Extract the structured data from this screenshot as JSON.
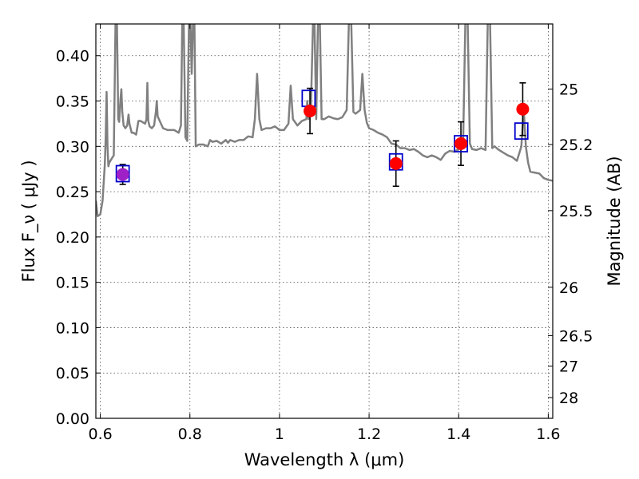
{
  "chart_data": {
    "type": "scatter",
    "xlabel": "Wavelength  λ (μm)",
    "ylabel": "Flux  F_ν  ( μJy )",
    "ylabel_right": "Magnitude (AB)",
    "xlim": [
      0.59,
      1.61
    ],
    "ylim": [
      0.0,
      0.435
    ],
    "x_ticks": [
      0.6,
      0.8,
      1.0,
      1.2,
      1.4,
      1.6
    ],
    "x_tick_labels": [
      "0.6",
      "0.8",
      "1",
      "1.2",
      "1.4",
      "1.6"
    ],
    "y_ticks": [
      0.0,
      0.05,
      0.1,
      0.15,
      0.2,
      0.25,
      0.3,
      0.35,
      0.4
    ],
    "y_tick_labels": [
      "0.00",
      "0.05",
      "0.10",
      "0.15",
      "0.20",
      "0.25",
      "0.30",
      "0.35",
      "0.40"
    ],
    "right_axis_ticks": [
      {
        "mag": 25,
        "label": "25"
      },
      {
        "mag": 25.2,
        "label": "25.2"
      },
      {
        "mag": 25.5,
        "label": "25.5"
      },
      {
        "mag": 26,
        "label": "26"
      },
      {
        "mag": 26.5,
        "label": "26.5"
      },
      {
        "mag": 27,
        "label": "27"
      },
      {
        "mag": 28,
        "label": "28"
      }
    ],
    "grid": true,
    "series": [
      {
        "kind": "model-spectrum",
        "color": "#808080",
        "points": [
          [
            0.59,
            0.24
          ],
          [
            0.594,
            0.223
          ],
          [
            0.6,
            0.225
          ],
          [
            0.605,
            0.24
          ],
          [
            0.61,
            0.28
          ],
          [
            0.612,
            0.31
          ],
          [
            0.614,
            0.36
          ],
          [
            0.616,
            0.3
          ],
          [
            0.618,
            0.278
          ],
          [
            0.62,
            0.282
          ],
          [
            0.626,
            0.287
          ],
          [
            0.63,
            0.29
          ],
          [
            0.634,
            0.44
          ],
          [
            0.637,
            0.44
          ],
          [
            0.64,
            0.33
          ],
          [
            0.642,
            0.327
          ],
          [
            0.645,
            0.352
          ],
          [
            0.647,
            0.363
          ],
          [
            0.649,
            0.338
          ],
          [
            0.652,
            0.323
          ],
          [
            0.656,
            0.32
          ],
          [
            0.66,
            0.323
          ],
          [
            0.663,
            0.335
          ],
          [
            0.665,
            0.325
          ],
          [
            0.67,
            0.315
          ],
          [
            0.674,
            0.315
          ],
          [
            0.68,
            0.313
          ],
          [
            0.685,
            0.328
          ],
          [
            0.69,
            0.328
          ],
          [
            0.7,
            0.325
          ],
          [
            0.703,
            0.33
          ],
          [
            0.705,
            0.37
          ],
          [
            0.707,
            0.328
          ],
          [
            0.71,
            0.322
          ],
          [
            0.715,
            0.32
          ],
          [
            0.72,
            0.323
          ],
          [
            0.724,
            0.338
          ],
          [
            0.726,
            0.35
          ],
          [
            0.728,
            0.333
          ],
          [
            0.74,
            0.32
          ],
          [
            0.75,
            0.318
          ],
          [
            0.765,
            0.318
          ],
          [
            0.775,
            0.315
          ],
          [
            0.78,
            0.323
          ],
          [
            0.783,
            0.44
          ],
          [
            0.786,
            0.44
          ],
          [
            0.79,
            0.31
          ],
          [
            0.794,
            0.306
          ],
          [
            0.798,
            0.44
          ],
          [
            0.801,
            0.44
          ],
          [
            0.804,
            0.38
          ],
          [
            0.807,
            0.44
          ],
          [
            0.81,
            0.44
          ],
          [
            0.813,
            0.3
          ],
          [
            0.82,
            0.302
          ],
          [
            0.83,
            0.302
          ],
          [
            0.84,
            0.3
          ],
          [
            0.845,
            0.307
          ],
          [
            0.85,
            0.305
          ],
          [
            0.86,
            0.306
          ],
          [
            0.87,
            0.303
          ],
          [
            0.88,
            0.307
          ],
          [
            0.885,
            0.304
          ],
          [
            0.89,
            0.307
          ],
          [
            0.9,
            0.305
          ],
          [
            0.91,
            0.307
          ],
          [
            0.92,
            0.307
          ],
          [
            0.93,
            0.311
          ],
          [
            0.94,
            0.31
          ],
          [
            0.945,
            0.33
          ],
          [
            0.95,
            0.38
          ],
          [
            0.955,
            0.33
          ],
          [
            0.96,
            0.318
          ],
          [
            0.97,
            0.32
          ],
          [
            0.98,
            0.32
          ],
          [
            0.99,
            0.322
          ],
          [
            1.0,
            0.318
          ],
          [
            1.01,
            0.318
          ],
          [
            1.02,
            0.325
          ],
          [
            1.025,
            0.367
          ],
          [
            1.03,
            0.33
          ],
          [
            1.04,
            0.323
          ],
          [
            1.05,
            0.328
          ],
          [
            1.06,
            0.33
          ],
          [
            1.062,
            0.35
          ],
          [
            1.065,
            0.33
          ],
          [
            1.07,
            0.34
          ],
          [
            1.075,
            0.44
          ],
          [
            1.078,
            0.44
          ],
          [
            1.082,
            0.33
          ],
          [
            1.086,
            0.44
          ],
          [
            1.09,
            0.44
          ],
          [
            1.094,
            0.33
          ],
          [
            1.1,
            0.33
          ],
          [
            1.11,
            0.333
          ],
          [
            1.12,
            0.331
          ],
          [
            1.13,
            0.33
          ],
          [
            1.14,
            0.332
          ],
          [
            1.15,
            0.34
          ],
          [
            1.155,
            0.44
          ],
          [
            1.16,
            0.44
          ],
          [
            1.165,
            0.338
          ],
          [
            1.17,
            0.336
          ],
          [
            1.18,
            0.34
          ],
          [
            1.185,
            0.38
          ],
          [
            1.19,
            0.34
          ],
          [
            1.195,
            0.326
          ],
          [
            1.2,
            0.32
          ],
          [
            1.21,
            0.318
          ],
          [
            1.22,
            0.315
          ],
          [
            1.23,
            0.313
          ],
          [
            1.24,
            0.31
          ],
          [
            1.25,
            0.303
          ],
          [
            1.26,
            0.302
          ],
          [
            1.27,
            0.298
          ],
          [
            1.28,
            0.298
          ],
          [
            1.29,
            0.296
          ],
          [
            1.3,
            0.297
          ],
          [
            1.31,
            0.294
          ],
          [
            1.32,
            0.29
          ],
          [
            1.33,
            0.288
          ],
          [
            1.34,
            0.29
          ],
          [
            1.35,
            0.288
          ],
          [
            1.36,
            0.285
          ],
          [
            1.37,
            0.292
          ],
          [
            1.38,
            0.295
          ],
          [
            1.39,
            0.294
          ],
          [
            1.4,
            0.297
          ],
          [
            1.41,
            0.305
          ],
          [
            1.415,
            0.44
          ],
          [
            1.42,
            0.44
          ],
          [
            1.425,
            0.303
          ],
          [
            1.43,
            0.297
          ],
          [
            1.44,
            0.296
          ],
          [
            1.45,
            0.298
          ],
          [
            1.46,
            0.296
          ],
          [
            1.465,
            0.44
          ],
          [
            1.47,
            0.44
          ],
          [
            1.475,
            0.298
          ],
          [
            1.48,
            0.3
          ],
          [
            1.49,
            0.296
          ],
          [
            1.5,
            0.293
          ],
          [
            1.51,
            0.29
          ],
          [
            1.52,
            0.288
          ],
          [
            1.53,
            0.284
          ],
          [
            1.54,
            0.3
          ],
          [
            1.545,
            0.343
          ],
          [
            1.55,
            0.3
          ],
          [
            1.555,
            0.282
          ],
          [
            1.56,
            0.272
          ],
          [
            1.57,
            0.271
          ],
          [
            1.58,
            0.27
          ],
          [
            1.59,
            0.265
          ],
          [
            1.6,
            0.263
          ],
          [
            1.61,
            0.262
          ]
        ]
      },
      {
        "kind": "model-photometry",
        "marker": "square",
        "color": "#0000cc",
        "points": [
          {
            "x": 0.65,
            "y": 0.269
          },
          {
            "x": 1.065,
            "y": 0.352
          },
          {
            "x": 1.26,
            "y": 0.282
          },
          {
            "x": 1.405,
            "y": 0.302
          },
          {
            "x": 1.54,
            "y": 0.316
          }
        ]
      },
      {
        "kind": "observed-photometry",
        "marker": "circle",
        "color": "#ff0000",
        "first_point_color": "#a020c8",
        "points": [
          {
            "x": 0.65,
            "y": 0.269,
            "err": 0.011
          },
          {
            "x": 1.068,
            "y": 0.339,
            "err": 0.025
          },
          {
            "x": 1.26,
            "y": 0.281,
            "err": 0.025
          },
          {
            "x": 1.405,
            "y": 0.303,
            "err": 0.024
          },
          {
            "x": 1.543,
            "y": 0.341,
            "err": 0.029
          }
        ]
      }
    ]
  }
}
